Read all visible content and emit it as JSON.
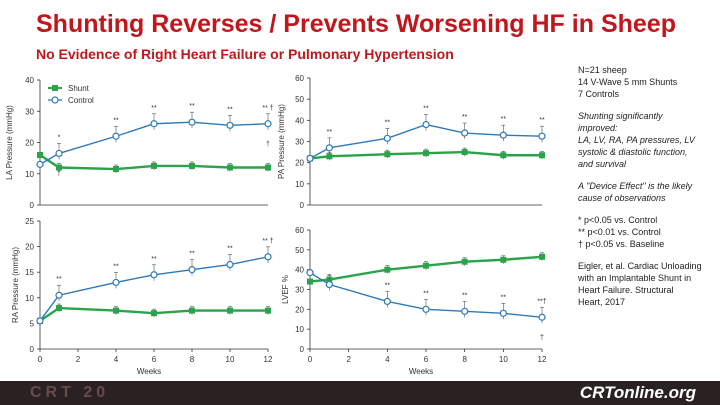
{
  "header": {
    "title": "Shunting Reverses / Prevents Worsening HF in Sheep",
    "subtitle": "No Evidence of Right Heart Failure or Pulmonary Hypertension"
  },
  "notes": {
    "study": [
      "N=21 sheep",
      "14 V-Wave 5 mm Shunts",
      "7 Controls"
    ],
    "improved": [
      "Shunting significantly",
      "improved:",
      "LA, LV, RA, PA pressures, LV",
      "systolic & diastolic function,",
      "and survival"
    ],
    "device_effect": [
      "A \"Device Effect\" is the likely",
      "cause of observations"
    ],
    "significance": [
      "*    p<0.05 vs. Control",
      "**  p<0.01 vs. Control",
      "†   p<0.05 vs. Baseline"
    ],
    "citation": [
      "Eigler, et al. Cardiac Unloading",
      "with an Implantable Shunt in",
      "Heart Failure. Structural",
      "Heart, 2017"
    ]
  },
  "footer": {
    "left_brand": "CRT 20",
    "right_brand": "CRTonline.org"
  },
  "colors": {
    "title": "#c0161c",
    "shunt": "#2aa34a",
    "control": "#2e7ab8",
    "footer_bg": "#2a2222"
  },
  "chart_data": [
    {
      "type": "line",
      "ylabel": "LA Pressure (mmHg)",
      "xlabel": "",
      "ylim": [
        0,
        40
      ],
      "yticks": [
        0,
        10,
        20,
        30,
        40
      ],
      "xlim": [
        0,
        12
      ],
      "xticks": [],
      "legend": {
        "placement": "top-left"
      },
      "series": [
        {
          "name": "Shunt",
          "x": [
            0,
            1,
            4,
            6,
            8,
            10,
            12
          ],
          "y": [
            16,
            12,
            11.5,
            12.5,
            12.5,
            12,
            12
          ]
        },
        {
          "name": "Control",
          "x": [
            0,
            1,
            4,
            6,
            8,
            10,
            12
          ],
          "y": [
            13,
            16.5,
            22,
            26,
            26.5,
            25.5,
            26
          ]
        }
      ],
      "annotations": [
        {
          "x": 1,
          "text": "*"
        },
        {
          "x": 4,
          "text": "**"
        },
        {
          "x": 6,
          "text": "**"
        },
        {
          "x": 8,
          "text": "**"
        },
        {
          "x": 10,
          "text": "**"
        },
        {
          "x": 12,
          "text": "** †"
        },
        {
          "x": 1,
          "text": "†"
        },
        {
          "x": 12,
          "text": "†"
        }
      ]
    },
    {
      "type": "line",
      "ylabel": "PA Pressure (mmHg)",
      "xlabel": "",
      "ylim": [
        0,
        60
      ],
      "yticks": [
        0,
        10,
        20,
        30,
        40,
        50,
        60
      ],
      "xlim": [
        0,
        12
      ],
      "xticks": [],
      "series": [
        {
          "name": "Shunt",
          "x": [
            0,
            1,
            4,
            6,
            8,
            10,
            12
          ],
          "y": [
            22,
            23,
            24,
            24.5,
            25,
            23.5,
            23.5
          ]
        },
        {
          "name": "Control",
          "x": [
            0,
            1,
            4,
            6,
            8,
            10,
            12
          ],
          "y": [
            22,
            27,
            31.5,
            38,
            34,
            33,
            32.5
          ]
        }
      ],
      "annotations": [
        {
          "x": 1,
          "text": "**"
        },
        {
          "x": 4,
          "text": "**"
        },
        {
          "x": 6,
          "text": "**"
        },
        {
          "x": 8,
          "text": "**"
        },
        {
          "x": 10,
          "text": "**"
        },
        {
          "x": 12,
          "text": "**"
        }
      ]
    },
    {
      "type": "line",
      "ylabel": "RA Pressure (mmHg)",
      "xlabel": "Weeks",
      "ylim": [
        0,
        25
      ],
      "yticks": [
        0,
        5,
        10,
        15,
        20,
        25
      ],
      "xlim": [
        0,
        12
      ],
      "xticks": [
        0,
        2,
        4,
        6,
        8,
        10,
        12
      ],
      "series": [
        {
          "name": "Shunt",
          "x": [
            0,
            1,
            4,
            6,
            8,
            10,
            12
          ],
          "y": [
            5.5,
            8,
            7.5,
            7,
            7.5,
            7.5,
            7.5
          ]
        },
        {
          "name": "Control",
          "x": [
            0,
            1,
            4,
            6,
            8,
            10,
            12
          ],
          "y": [
            5.5,
            10.5,
            13,
            14.5,
            15.5,
            16.5,
            18
          ]
        }
      ],
      "annotations": [
        {
          "x": 1,
          "text": "**"
        },
        {
          "x": 4,
          "text": "**"
        },
        {
          "x": 6,
          "text": "**"
        },
        {
          "x": 8,
          "text": "**"
        },
        {
          "x": 10,
          "text": "**"
        },
        {
          "x": 12,
          "text": "** †"
        }
      ]
    },
    {
      "type": "line",
      "ylabel": "LVEF %",
      "xlabel": "Weeks",
      "ylim": [
        0,
        60
      ],
      "yticks": [
        0,
        10,
        20,
        30,
        40,
        50,
        60
      ],
      "xlim": [
        0,
        12
      ],
      "xticks": [
        0,
        2,
        4,
        6,
        8,
        10,
        12
      ],
      "series": [
        {
          "name": "Shunt",
          "x": [
            0,
            1,
            4,
            6,
            8,
            10,
            12
          ],
          "y": [
            34,
            35,
            40,
            42,
            44,
            45,
            46.5
          ]
        },
        {
          "name": "Control",
          "x": [
            0,
            1,
            4,
            6,
            8,
            10,
            12
          ],
          "y": [
            38.5,
            32.5,
            24,
            20,
            19,
            18,
            16
          ]
        }
      ],
      "annotations": [
        {
          "x": 4,
          "text": "**"
        },
        {
          "x": 6,
          "text": "**"
        },
        {
          "x": 8,
          "text": "**"
        },
        {
          "x": 10,
          "text": "**"
        },
        {
          "x": 12,
          "text": "**†"
        },
        {
          "x": 12,
          "text": "†"
        }
      ]
    }
  ]
}
